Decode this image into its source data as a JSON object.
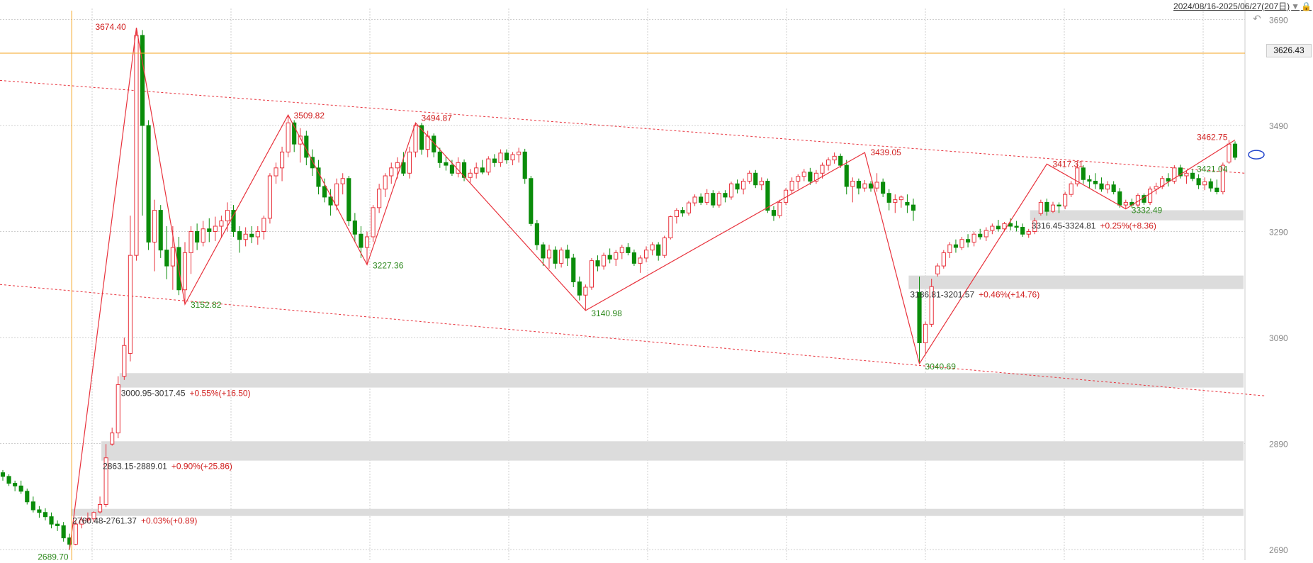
{
  "header": {
    "range_text": "2024/08/16-2025/06/27(207日)",
    "triangle_icon": "dropdown-triangle-icon",
    "lock_icon": "lock-icon"
  },
  "colors": {
    "up": "#e8323c",
    "down": "#0a8c0a",
    "trend": "#e8323c",
    "crosshair": "#f5a623",
    "grid": "#cfcfcf",
    "gap": "#dcdcdc",
    "green_label": "#2f8a1f",
    "red_label": "#d11f1f"
  },
  "chart_data": {
    "type": "candlestick",
    "period": "2024/08/16-2025/06/27(207日)",
    "y_axis": {
      "ylim": [
        2670,
        3700
      ],
      "ticks": [
        3690,
        3490,
        3290,
        3090,
        2890,
        2690
      ],
      "side": "right"
    },
    "grid": true,
    "crosshair_price": "3626.43",
    "swing_points": [
      {
        "label": "2689.70",
        "price": 2689.7,
        "kind": "low"
      },
      {
        "label": "3674.40",
        "price": 3674.4,
        "kind": "high"
      },
      {
        "label": "3152.82",
        "price": 3152.82,
        "kind": "low"
      },
      {
        "label": "3509.82",
        "price": 3509.82,
        "kind": "high"
      },
      {
        "label": "3227.36",
        "price": 3227.36,
        "kind": "low"
      },
      {
        "label": "3494.87",
        "price": 3494.87,
        "kind": "high"
      },
      {
        "label": "3140.98",
        "price": 3140.98,
        "kind": "low"
      },
      {
        "label": "3439.05",
        "price": 3439.05,
        "kind": "high"
      },
      {
        "label": "3040.69",
        "price": 3040.69,
        "kind": "low"
      },
      {
        "label": "3417.31",
        "price": 3417.31,
        "kind": "high"
      },
      {
        "label": "3332.49",
        "price": 3332.49,
        "kind": "low"
      },
      {
        "label": "3462.75",
        "price": 3462.75,
        "kind": "high"
      },
      {
        "label": "3421.04",
        "price": 3421.04,
        "kind": "low"
      }
    ],
    "gaps": [
      {
        "range": "2760.48-2761.37",
        "pct": "+0.03%",
        "chg": "(+0.89)",
        "lo": 2760.48,
        "hi": 2761.37
      },
      {
        "range": "2863.15-2889.01",
        "pct": "+0.90%",
        "chg": "(+25.86)",
        "lo": 2863.15,
        "hi": 2889.01
      },
      {
        "range": "3000.95-3017.45",
        "pct": "+0.55%",
        "chg": "(+16.50)",
        "lo": 3000.95,
        "hi": 3017.45
      },
      {
        "range": "3186.81-3201.57",
        "pct": "+0.46%",
        "chg": "(+14.76)",
        "lo": 3186.81,
        "hi": 3201.57
      },
      {
        "range": "3316.45-3324.81",
        "pct": "+0.25%",
        "chg": "(+8.36)",
        "lo": 3316.45,
        "hi": 3324.81
      }
    ],
    "candles": [
      [
        2835,
        2840,
        2820,
        2828
      ],
      [
        2828,
        2832,
        2810,
        2815
      ],
      [
        2815,
        2820,
        2800,
        2810
      ],
      [
        2810,
        2820,
        2795,
        2800
      ],
      [
        2800,
        2805,
        2775,
        2780
      ],
      [
        2780,
        2790,
        2760,
        2765
      ],
      [
        2765,
        2772,
        2750,
        2760
      ],
      [
        2760,
        2768,
        2745,
        2752
      ],
      [
        2752,
        2760,
        2730,
        2738
      ],
      [
        2738,
        2745,
        2725,
        2735
      ],
      [
        2735,
        2742,
        2705,
        2712
      ],
      [
        2712,
        2720,
        2689.7,
        2700
      ],
      [
        2700,
        2745,
        2698,
        2738
      ],
      [
        2738,
        2752,
        2730,
        2746
      ],
      [
        2746,
        2760,
        2740,
        2748
      ],
      [
        2748,
        2762,
        2742,
        2760
      ],
      [
        2761,
        2790,
        2758,
        2775
      ],
      [
        2775,
        2889,
        2770,
        2863
      ],
      [
        2889,
        2920,
        2886,
        2910
      ],
      [
        2910,
        3017,
        2900,
        3001
      ],
      [
        3017,
        3090,
        3010,
        3075
      ],
      [
        3060,
        3320,
        3045,
        3245
      ],
      [
        3245,
        3674.4,
        3235,
        3660
      ],
      [
        3660,
        3670,
        3320,
        3490
      ],
      [
        3490,
        3500,
        3255,
        3270
      ],
      [
        3270,
        3350,
        3215,
        3330
      ],
      [
        3330,
        3340,
        3240,
        3255
      ],
      [
        3255,
        3300,
        3200,
        3225
      ],
      [
        3225,
        3300,
        3180,
        3260
      ],
      [
        3260,
        3280,
        3170,
        3180
      ],
      [
        3180,
        3270,
        3152.82,
        3250
      ],
      [
        3250,
        3300,
        3210,
        3290
      ],
      [
        3290,
        3305,
        3255,
        3270
      ],
      [
        3270,
        3310,
        3262,
        3295
      ],
      [
        3295,
        3315,
        3270,
        3290
      ],
      [
        3290,
        3318,
        3272,
        3300
      ],
      [
        3300,
        3320,
        3278,
        3310
      ],
      [
        3310,
        3345,
        3290,
        3330
      ],
      [
        3330,
        3340,
        3280,
        3290
      ],
      [
        3290,
        3300,
        3250,
        3275
      ],
      [
        3275,
        3298,
        3262,
        3285
      ],
      [
        3285,
        3300,
        3268,
        3280
      ],
      [
        3280,
        3300,
        3265,
        3290
      ],
      [
        3290,
        3320,
        3275,
        3315
      ],
      [
        3315,
        3400,
        3305,
        3395
      ],
      [
        3395,
        3420,
        3380,
        3410
      ],
      [
        3410,
        3450,
        3385,
        3440
      ],
      [
        3440,
        3509.82,
        3430,
        3495
      ],
      [
        3495,
        3500,
        3440,
        3455
      ],
      [
        3455,
        3485,
        3420,
        3470
      ],
      [
        3470,
        3480,
        3415,
        3430
      ],
      [
        3430,
        3445,
        3395,
        3410
      ],
      [
        3410,
        3425,
        3360,
        3375
      ],
      [
        3375,
        3390,
        3345,
        3355
      ],
      [
        3355,
        3370,
        3320,
        3340
      ],
      [
        3340,
        3390,
        3330,
        3380
      ],
      [
        3380,
        3400,
        3360,
        3390
      ],
      [
        3390,
        3395,
        3300,
        3310
      ],
      [
        3310,
        3325,
        3270,
        3285
      ],
      [
        3285,
        3300,
        3240,
        3260
      ],
      [
        3260,
        3290,
        3227.36,
        3280
      ],
      [
        3280,
        3340,
        3270,
        3335
      ],
      [
        3335,
        3380,
        3325,
        3370
      ],
      [
        3370,
        3400,
        3355,
        3395
      ],
      [
        3395,
        3420,
        3380,
        3410
      ],
      [
        3410,
        3430,
        3390,
        3420
      ],
      [
        3420,
        3440,
        3395,
        3400
      ],
      [
        3400,
        3450,
        3390,
        3440
      ],
      [
        3440,
        3494.87,
        3430,
        3490
      ],
      [
        3490,
        3495,
        3435,
        3445
      ],
      [
        3445,
        3480,
        3430,
        3470
      ],
      [
        3470,
        3475,
        3430,
        3440
      ],
      [
        3440,
        3448,
        3410,
        3420
      ],
      [
        3420,
        3432,
        3405,
        3415
      ],
      [
        3415,
        3425,
        3395,
        3400
      ],
      [
        3400,
        3430,
        3392,
        3420
      ],
      [
        3420,
        3426,
        3385,
        3392
      ],
      [
        3392,
        3408,
        3382,
        3400
      ],
      [
        3400,
        3420,
        3390,
        3410
      ],
      [
        3410,
        3425,
        3398,
        3402
      ],
      [
        3402,
        3432,
        3396,
        3427
      ],
      [
        3427,
        3436,
        3412,
        3420
      ],
      [
        3420,
        3445,
        3412,
        3438
      ],
      [
        3438,
        3445,
        3418,
        3425
      ],
      [
        3425,
        3440,
        3415,
        3435
      ],
      [
        3435,
        3448,
        3420,
        3440
      ],
      [
        3440,
        3446,
        3380,
        3390
      ],
      [
        3390,
        3395,
        3300,
        3305
      ],
      [
        3305,
        3312,
        3255,
        3265
      ],
      [
        3265,
        3270,
        3225,
        3240
      ],
      [
        3240,
        3265,
        3220,
        3255
      ],
      [
        3255,
        3262,
        3220,
        3230
      ],
      [
        3230,
        3260,
        3222,
        3255
      ],
      [
        3255,
        3265,
        3225,
        3240
      ],
      [
        3240,
        3248,
        3185,
        3195
      ],
      [
        3195,
        3205,
        3160,
        3170
      ],
      [
        3170,
        3190,
        3140.98,
        3185
      ],
      [
        3185,
        3240,
        3180,
        3235
      ],
      [
        3235,
        3245,
        3215,
        3225
      ],
      [
        3225,
        3250,
        3218,
        3245
      ],
      [
        3245,
        3258,
        3230,
        3238
      ],
      [
        3238,
        3255,
        3225,
        3250
      ],
      [
        3250,
        3265,
        3238,
        3260
      ],
      [
        3260,
        3268,
        3245,
        3250
      ],
      [
        3250,
        3256,
        3225,
        3230
      ],
      [
        3230,
        3245,
        3212,
        3240
      ],
      [
        3240,
        3262,
        3232,
        3255
      ],
      [
        3255,
        3270,
        3245,
        3265
      ],
      [
        3265,
        3270,
        3235,
        3245
      ],
      [
        3245,
        3282,
        3240,
        3278
      ],
      [
        3278,
        3320,
        3275,
        3318
      ],
      [
        3318,
        3334,
        3305,
        3330
      ],
      [
        3330,
        3336,
        3318,
        3325
      ],
      [
        3325,
        3348,
        3320,
        3344
      ],
      [
        3344,
        3360,
        3338,
        3355
      ],
      [
        3355,
        3362,
        3340,
        3345
      ],
      [
        3345,
        3370,
        3340,
        3362
      ],
      [
        3362,
        3368,
        3335,
        3340
      ],
      [
        3340,
        3366,
        3335,
        3362
      ],
      [
        3362,
        3368,
        3345,
        3355
      ],
      [
        3355,
        3384,
        3350,
        3380
      ],
      [
        3380,
        3388,
        3362,
        3370
      ],
      [
        3370,
        3390,
        3360,
        3385
      ],
      [
        3385,
        3405,
        3380,
        3400
      ],
      [
        3400,
        3406,
        3372,
        3378
      ],
      [
        3378,
        3392,
        3368,
        3385
      ],
      [
        3385,
        3390,
        3325,
        3330
      ],
      [
        3330,
        3338,
        3310,
        3320
      ],
      [
        3320,
        3350,
        3315,
        3345
      ],
      [
        3345,
        3372,
        3340,
        3368
      ],
      [
        3368,
        3392,
        3360,
        3385
      ],
      [
        3385,
        3398,
        3370,
        3394
      ],
      [
        3394,
        3408,
        3385,
        3402
      ],
      [
        3402,
        3410,
        3378,
        3385
      ],
      [
        3385,
        3406,
        3380,
        3400
      ],
      [
        3400,
        3420,
        3390,
        3415
      ],
      [
        3415,
        3430,
        3405,
        3425
      ],
      [
        3425,
        3439.05,
        3418,
        3432
      ],
      [
        3432,
        3437,
        3410,
        3415
      ],
      [
        3415,
        3425,
        3360,
        3375
      ],
      [
        3375,
        3392,
        3345,
        3385
      ],
      [
        3385,
        3390,
        3360,
        3372
      ],
      [
        3372,
        3387,
        3365,
        3380
      ],
      [
        3380,
        3385,
        3365,
        3372
      ],
      [
        3372,
        3400,
        3365,
        3383
      ],
      [
        3383,
        3390,
        3355,
        3362
      ],
      [
        3362,
        3370,
        3330,
        3345
      ],
      [
        3345,
        3360,
        3325,
        3350
      ],
      [
        3350,
        3358,
        3335,
        3355
      ],
      [
        3345,
        3360,
        3325,
        3340
      ],
      [
        3340,
        3352,
        3310,
        3330
      ],
      [
        3175,
        3205,
        3040.69,
        3080
      ],
      [
        3080,
        3120,
        3060,
        3115
      ],
      [
        3115,
        3201,
        3110,
        3186
      ],
      [
        3210,
        3230,
        3205,
        3225
      ],
      [
        3225,
        3255,
        3220,
        3250
      ],
      [
        3250,
        3270,
        3240,
        3265
      ],
      [
        3265,
        3275,
        3250,
        3260
      ],
      [
        3260,
        3280,
        3255,
        3275
      ],
      [
        3275,
        3285,
        3260,
        3270
      ],
      [
        3270,
        3290,
        3262,
        3285
      ],
      [
        3285,
        3295,
        3275,
        3280
      ],
      [
        3280,
        3298,
        3272,
        3292
      ],
      [
        3292,
        3305,
        3285,
        3300
      ],
      [
        3300,
        3312,
        3290,
        3295
      ],
      [
        3295,
        3308,
        3290,
        3305
      ],
      [
        3305,
        3315,
        3292,
        3300
      ],
      [
        3300,
        3310,
        3290,
        3298
      ],
      [
        3298,
        3305,
        3280,
        3285
      ],
      [
        3285,
        3295,
        3278,
        3290
      ],
      [
        3290,
        3316,
        3285,
        3310
      ],
      [
        3324,
        3350,
        3320,
        3345
      ],
      [
        3345,
        3352,
        3320,
        3328
      ],
      [
        3328,
        3346,
        3325,
        3340
      ],
      [
        3340,
        3345,
        3325,
        3338
      ],
      [
        3338,
        3365,
        3332,
        3360
      ],
      [
        3360,
        3385,
        3355,
        3380
      ],
      [
        3380,
        3417.31,
        3375,
        3410
      ],
      [
        3410,
        3415,
        3380,
        3388
      ],
      [
        3388,
        3396,
        3372,
        3385
      ],
      [
        3385,
        3400,
        3370,
        3380
      ],
      [
        3380,
        3392,
        3365,
        3370
      ],
      [
        3370,
        3385,
        3362,
        3378
      ],
      [
        3378,
        3385,
        3360,
        3365
      ],
      [
        3365,
        3372,
        3335,
        3340
      ],
      [
        3340,
        3350,
        3332.49,
        3345
      ],
      [
        3345,
        3352,
        3335,
        3340
      ],
      [
        3340,
        3362,
        3336,
        3358
      ],
      [
        3358,
        3362,
        3340,
        3345
      ],
      [
        3345,
        3375,
        3340,
        3370
      ],
      [
        3370,
        3382,
        3360,
        3375
      ],
      [
        3375,
        3395,
        3370,
        3390
      ],
      [
        3390,
        3400,
        3375,
        3385
      ],
      [
        3385,
        3415,
        3380,
        3410
      ],
      [
        3410,
        3416,
        3390,
        3395
      ],
      [
        3395,
        3405,
        3380,
        3400
      ],
      [
        3400,
        3408,
        3385,
        3390
      ],
      [
        3390,
        3398,
        3370,
        3378
      ],
      [
        3378,
        3392,
        3368,
        3384
      ],
      [
        3384,
        3390,
        3365,
        3372
      ],
      [
        3372,
        3388,
        3360,
        3365
      ],
      [
        3365,
        3420,
        3360,
        3415
      ],
      [
        3421.04,
        3462.75,
        3418,
        3455
      ],
      [
        3455,
        3460,
        3425,
        3430
      ]
    ]
  },
  "gap_labels": [
    {
      "range": "2760.48-2761.37",
      "pct": "+0.03%(+0.89)"
    },
    {
      "range": "2863.15-2889.01",
      "pct": "+0.90%(+25.86)"
    },
    {
      "range": "3000.95-3017.45",
      "pct": "+0.55%(+16.50)"
    },
    {
      "range": "3186.81-3201.57",
      "pct": "+0.46%(+14.76)"
    },
    {
      "range": "3316.45-3324.81",
      "pct": "+0.25%(+8.36)"
    }
  ]
}
